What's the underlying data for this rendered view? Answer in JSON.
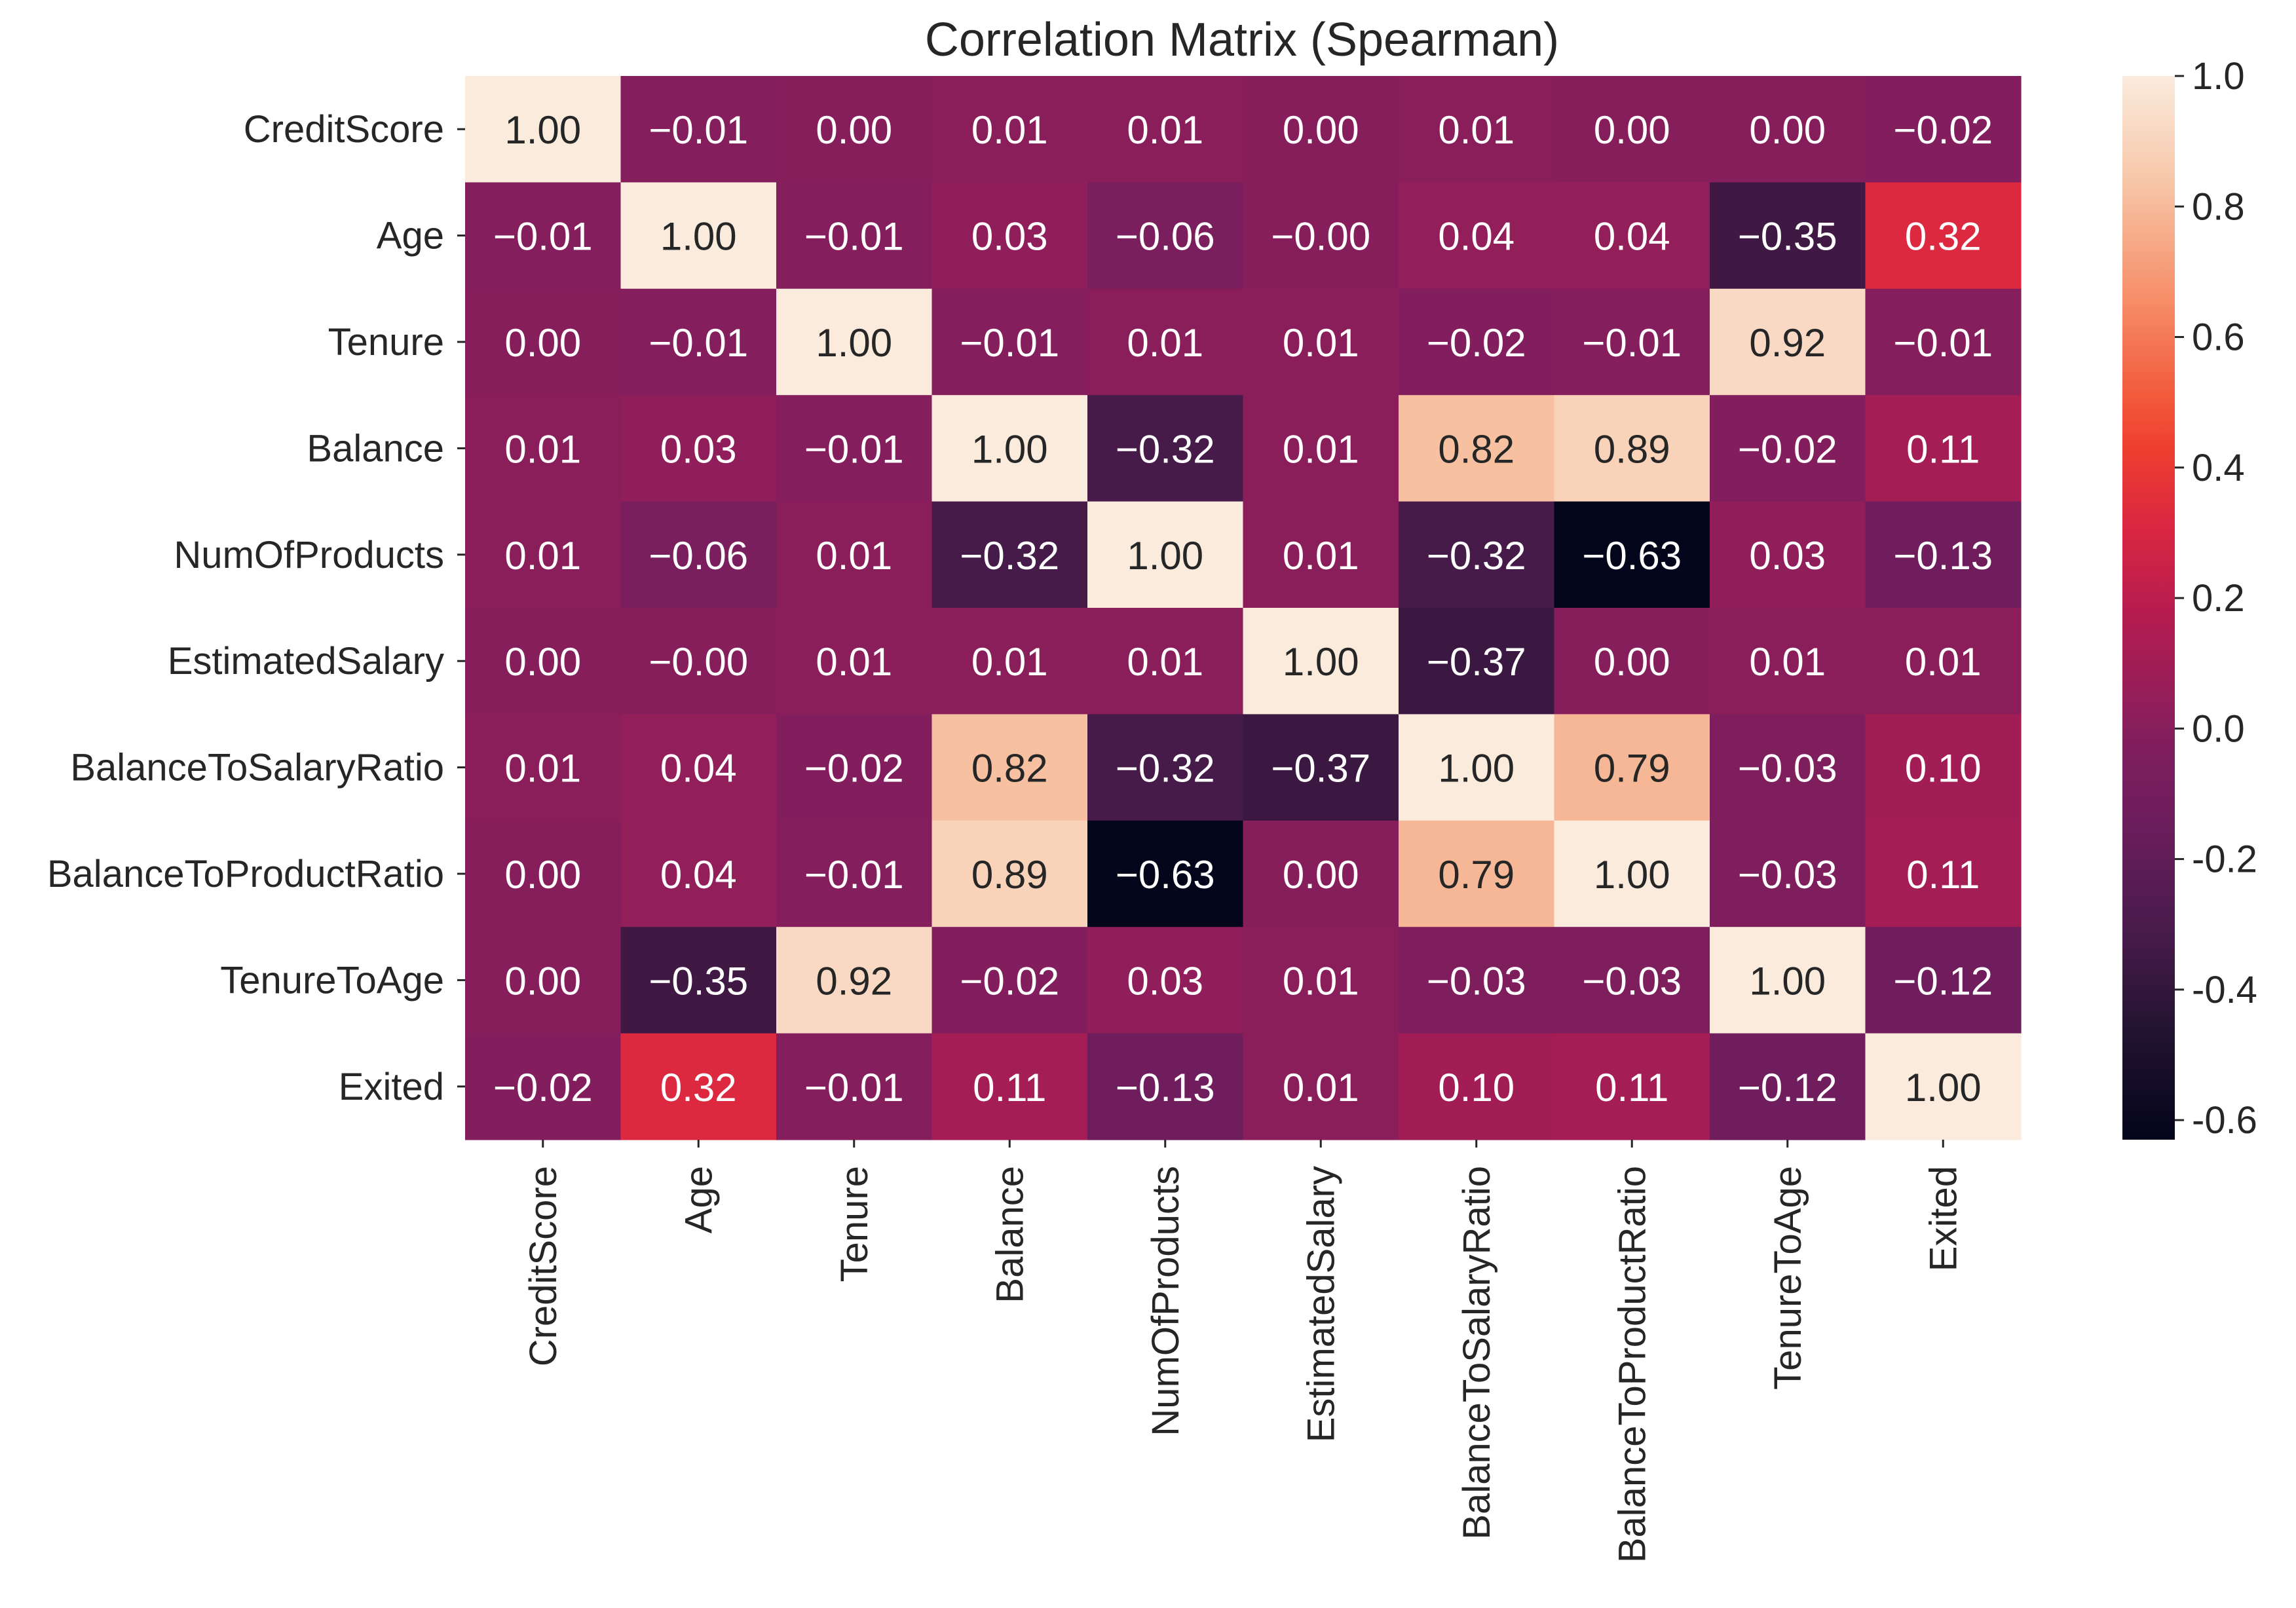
{
  "chart_data": {
    "type": "heatmap",
    "title": "Correlation Matrix (Spearman)",
    "row_labels": [
      "CreditScore",
      "Age",
      "Tenure",
      "Balance",
      "NumOfProducts",
      "EstimatedSalary",
      "BalanceToSalaryRatio",
      "BalanceToProductRatio",
      "TenureToAge",
      "Exited"
    ],
    "col_labels": [
      "CreditScore",
      "Age",
      "Tenure",
      "Balance",
      "NumOfProducts",
      "EstimatedSalary",
      "BalanceToSalaryRatio",
      "BalanceToProductRatio",
      "TenureToAge",
      "Exited"
    ],
    "values": [
      [
        1.0,
        -0.01,
        0.0,
        0.01,
        0.01,
        0.0,
        0.01,
        0.0,
        0.0,
        -0.02
      ],
      [
        -0.01,
        1.0,
        -0.01,
        0.03,
        -0.06,
        -0.0,
        0.04,
        0.04,
        -0.35,
        0.32
      ],
      [
        0.0,
        -0.01,
        1.0,
        -0.01,
        0.01,
        0.01,
        -0.02,
        -0.01,
        0.92,
        -0.01
      ],
      [
        0.01,
        0.03,
        -0.01,
        1.0,
        -0.32,
        0.01,
        0.82,
        0.89,
        -0.02,
        0.11
      ],
      [
        0.01,
        -0.06,
        0.01,
        -0.32,
        1.0,
        0.01,
        -0.32,
        -0.63,
        0.03,
        -0.13
      ],
      [
        0.0,
        -0.0,
        0.01,
        0.01,
        0.01,
        1.0,
        -0.37,
        0.0,
        0.01,
        0.01
      ],
      [
        0.01,
        0.04,
        -0.02,
        0.82,
        -0.32,
        -0.37,
        1.0,
        0.79,
        -0.03,
        0.1
      ],
      [
        0.0,
        0.04,
        -0.01,
        0.89,
        -0.63,
        0.0,
        0.79,
        1.0,
        -0.03,
        0.11
      ],
      [
        0.0,
        -0.35,
        0.92,
        -0.02,
        0.03,
        0.01,
        -0.03,
        -0.03,
        1.0,
        -0.12
      ],
      [
        -0.02,
        0.32,
        -0.01,
        0.11,
        -0.13,
        0.01,
        0.1,
        0.11,
        -0.12,
        1.0
      ]
    ],
    "annotations": [
      [
        "1.00",
        "−0.01",
        "0.00",
        "0.01",
        "0.01",
        "0.00",
        "0.01",
        "0.00",
        "0.00",
        "−0.02"
      ],
      [
        "−0.01",
        "1.00",
        "−0.01",
        "0.03",
        "−0.06",
        "−0.00",
        "0.04",
        "0.04",
        "−0.35",
        "0.32"
      ],
      [
        "0.00",
        "−0.01",
        "1.00",
        "−0.01",
        "0.01",
        "0.01",
        "−0.02",
        "−0.01",
        "0.92",
        "−0.01"
      ],
      [
        "0.01",
        "0.03",
        "−0.01",
        "1.00",
        "−0.32",
        "0.01",
        "0.82",
        "0.89",
        "−0.02",
        "0.11"
      ],
      [
        "0.01",
        "−0.06",
        "0.01",
        "−0.32",
        "1.00",
        "0.01",
        "−0.32",
        "−0.63",
        "0.03",
        "−0.13"
      ],
      [
        "0.00",
        "−0.00",
        "0.01",
        "0.01",
        "0.01",
        "1.00",
        "−0.37",
        "0.00",
        "0.01",
        "0.01"
      ],
      [
        "0.01",
        "0.04",
        "−0.02",
        "0.82",
        "−0.32",
        "−0.37",
        "1.00",
        "0.79",
        "−0.03",
        "0.10"
      ],
      [
        "0.00",
        "0.04",
        "−0.01",
        "0.89",
        "−0.63",
        "0.00",
        "0.79",
        "1.00",
        "−0.03",
        "0.11"
      ],
      [
        "0.00",
        "−0.35",
        "0.92",
        "−0.02",
        "0.03",
        "0.01",
        "−0.03",
        "−0.03",
        "1.00",
        "−0.12"
      ],
      [
        "−0.02",
        "0.32",
        "−0.01",
        "0.11",
        "−0.13",
        "0.01",
        "0.10",
        "0.11",
        "−0.12",
        "1.00"
      ]
    ],
    "colorbar": {
      "range": [
        -0.63,
        1.0
      ],
      "ticks": [
        1.0,
        0.8,
        0.6,
        0.4,
        0.2,
        0.0,
        -0.2,
        -0.4,
        -0.6
      ],
      "tick_labels": [
        "1.0",
        "0.8",
        "0.6",
        "0.4",
        "0.2",
        "0.0",
        "-0.2",
        "-0.4",
        "-0.6"
      ],
      "colormap": "rocket"
    },
    "colormap_stops": [
      [
        0.0,
        "#03051a"
      ],
      [
        0.1,
        "#221331"
      ],
      [
        0.2,
        "#4a1c4c"
      ],
      [
        0.3,
        "#6d1d5d"
      ],
      [
        0.37,
        "#801e5d"
      ],
      [
        0.4,
        "#8d1e5b"
      ],
      [
        0.5,
        "#b81c4f"
      ],
      [
        0.58,
        "#dc2840"
      ],
      [
        0.65,
        "#ee3f2f"
      ],
      [
        0.7,
        "#f25b3b"
      ],
      [
        0.8,
        "#f6936e"
      ],
      [
        0.86,
        "#f6b18f"
      ],
      [
        0.9,
        "#f7c6a8"
      ],
      [
        1.0,
        "#faebdd"
      ]
    ],
    "annotation_text_colors": {
      "dark_bg": "#ffffff",
      "light_bg": "#262626"
    },
    "tick_color": "#262626"
  }
}
